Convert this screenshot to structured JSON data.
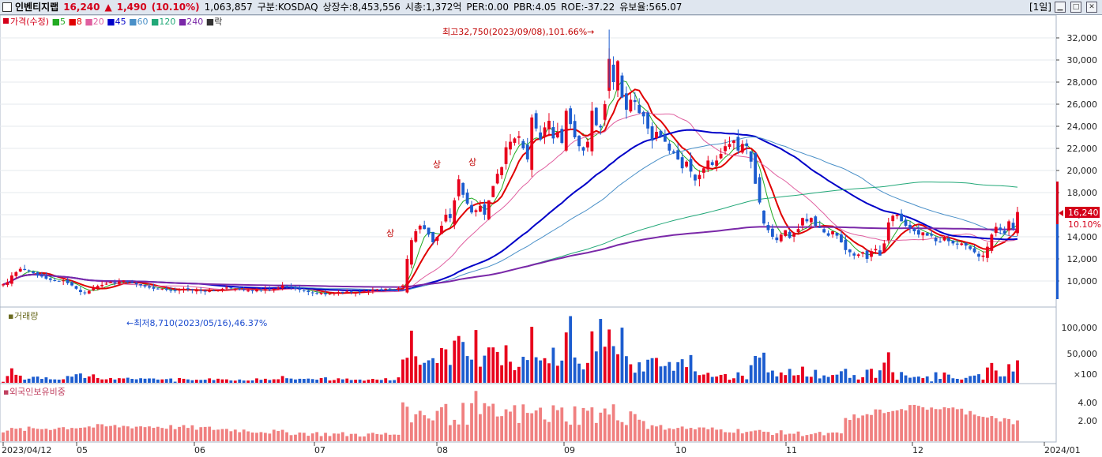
{
  "header": {
    "name": "인벤티지랩",
    "price": "16,240",
    "change_arrow": "▲",
    "change": "1,490",
    "change_pct": "(10.10%)",
    "volume": "1,063,857",
    "market": "구분:KOSDAQ",
    "listed": "상장수:8,453,556",
    "mcap": "시총:1,372억",
    "per": "PER:0.00",
    "pbr": "PBR:4.05",
    "roe": "ROE:-37.22",
    "float_ratio": "유보율:565.07",
    "period": "[1일]"
  },
  "price_panel": {
    "legend": [
      {
        "text": "가격(수정)",
        "color": "#d4001a",
        "icon": "red-square"
      },
      {
        "text": "5",
        "color": "#22aa22"
      },
      {
        "text": "8",
        "color": "#e00000"
      },
      {
        "text": "20",
        "color": "#e060a0"
      },
      {
        "text": "45",
        "color": "#0000c8"
      },
      {
        "text": "60",
        "color": "#4a90c8"
      },
      {
        "text": "120",
        "color": "#22a878"
      },
      {
        "text": "240",
        "color": "#7a28a8"
      },
      {
        "text": "락",
        "color": "#333333",
        "icon": "olive-square"
      }
    ],
    "high_annotation": "최고32,750(2023/09/08),101.66%→",
    "low_annotation": "←최저8,710(2023/05/16),46.37%",
    "limit_up_marks": [
      "상",
      "상",
      "상"
    ],
    "current_price_label": "16,240",
    "current_pct_label": "10.10%",
    "y_ticks": [
      "32,000",
      "30,000",
      "28,000",
      "26,000",
      "24,000",
      "22,000",
      "20,000",
      "18,000",
      "16,000",
      "14,000",
      "12,000",
      "10,000"
    ]
  },
  "volume_panel": {
    "title": "거래량",
    "y_ticks": [
      "100,000",
      "50,000",
      "×100"
    ]
  },
  "foreign_panel": {
    "title": "외국인보유비중",
    "y_ticks": [
      "4.00",
      "2.00"
    ]
  },
  "x_axis": {
    "labels": [
      "2023/04/12",
      "05",
      "06",
      "07",
      "08",
      "09",
      "10",
      "11",
      "12",
      "2024/01"
    ]
  },
  "colors": {
    "up": "#e8001c",
    "down": "#1c5ccf",
    "foreign_bar": "#f08080",
    "background": "#ffffff",
    "header_bg": "#dfe6ef"
  },
  "chart_data": {
    "type": "candlestick",
    "title": "인벤티지랩",
    "period": "daily",
    "date_range": [
      "2023/04/12",
      "2024/01"
    ],
    "price_high": {
      "value": 32750,
      "date": "2023/09/08",
      "pct": 101.66
    },
    "price_low": {
      "value": 8710,
      "date": "2023/05/16",
      "pct": 46.37
    },
    "close_series": [
      9700,
      9900,
      10500,
      10800,
      11100,
      11000,
      10900,
      10700,
      10500,
      10400,
      10200,
      10100,
      10000,
      9950,
      10050,
      9800,
      9600,
      9300,
      9000,
      8900,
      9100,
      9400,
      9550,
      9650,
      9750,
      9900,
      9800,
      9950,
      10050,
      9900,
      9800,
      9700,
      9600,
      9500,
      9400,
      9300,
      9250,
      9300,
      9200,
      9100,
      9100,
      9200,
      9300,
      9250,
      9200,
      9150,
      9100,
      9050,
      9150,
      9100,
      9200,
      9300,
      9400,
      9350,
      9300,
      9250,
      9200,
      9150,
      9100,
      9200,
      9150,
      9250,
      9200,
      9300,
      9400,
      9600,
      9500,
      9400,
      9300,
      9200,
      9100,
      9000,
      8900,
      8850,
      8950,
      8800,
      8850,
      8900,
      9000,
      8950,
      9050,
      9000,
      8950,
      9000,
      9050,
      9100,
      9200,
      9250,
      9200,
      9300,
      9250,
      9200,
      9350,
      9600,
      12000,
      13700,
      14500,
      15000,
      14700,
      14200,
      13500,
      14000,
      15000,
      16000,
      15700,
      17300,
      19200,
      17800,
      17000,
      16200,
      16400,
      16800,
      16000,
      17300,
      18600,
      19700,
      20300,
      22100,
      22600,
      22900,
      23100,
      22000,
      21000,
      24800,
      23800,
      22800,
      23900,
      24500,
      22900,
      23500,
      22500,
      25400,
      24200,
      23000,
      22200,
      21800,
      22600,
      25400,
      24100,
      23900,
      26000,
      30100,
      28000,
      29900,
      26600,
      25500,
      26400,
      26200,
      25200,
      24900,
      23800,
      22700,
      23500,
      23100,
      22600,
      21800,
      21600,
      21000,
      20200,
      20800,
      19900,
      19100,
      19600,
      20200,
      20900,
      20500,
      20900,
      21500,
      22200,
      22400,
      22700,
      21800,
      22400,
      22200,
      20800,
      18800,
      17100,
      15200,
      14600,
      14000,
      13700,
      14200,
      14600,
      13900,
      14300,
      14700,
      15700,
      15400,
      15700,
      15000,
      14800,
      14400,
      14100,
      14500,
      14100,
      13500,
      12800,
      12600,
      12300,
      12400,
      12600,
      12000,
      12700,
      12900,
      12300,
      13400,
      15300,
      15900,
      16000,
      15400,
      15000,
      14800,
      14500,
      14200,
      14400,
      14100,
      14100,
      13600,
      13500,
      14000,
      13600,
      13400,
      13300,
      13400,
      13200,
      12900,
      12600,
      12200,
      12300,
      13100,
      14200,
      14900,
      14600,
      14300,
      15400,
      14750,
      16240
    ],
    "moving_averages": [
      "5",
      "8",
      "20",
      "45",
      "60",
      "120",
      "240"
    ],
    "volume_unit": "×100",
    "volume_peaks": [
      {
        "date": "2023/08/31",
        "value": 120000
      },
      {
        "date": "2023/09/08",
        "value": 115000
      }
    ],
    "foreign_ownership_pct_range": [
      0.0,
      5.0
    ],
    "y_range": [
      8000,
      33500
    ]
  }
}
